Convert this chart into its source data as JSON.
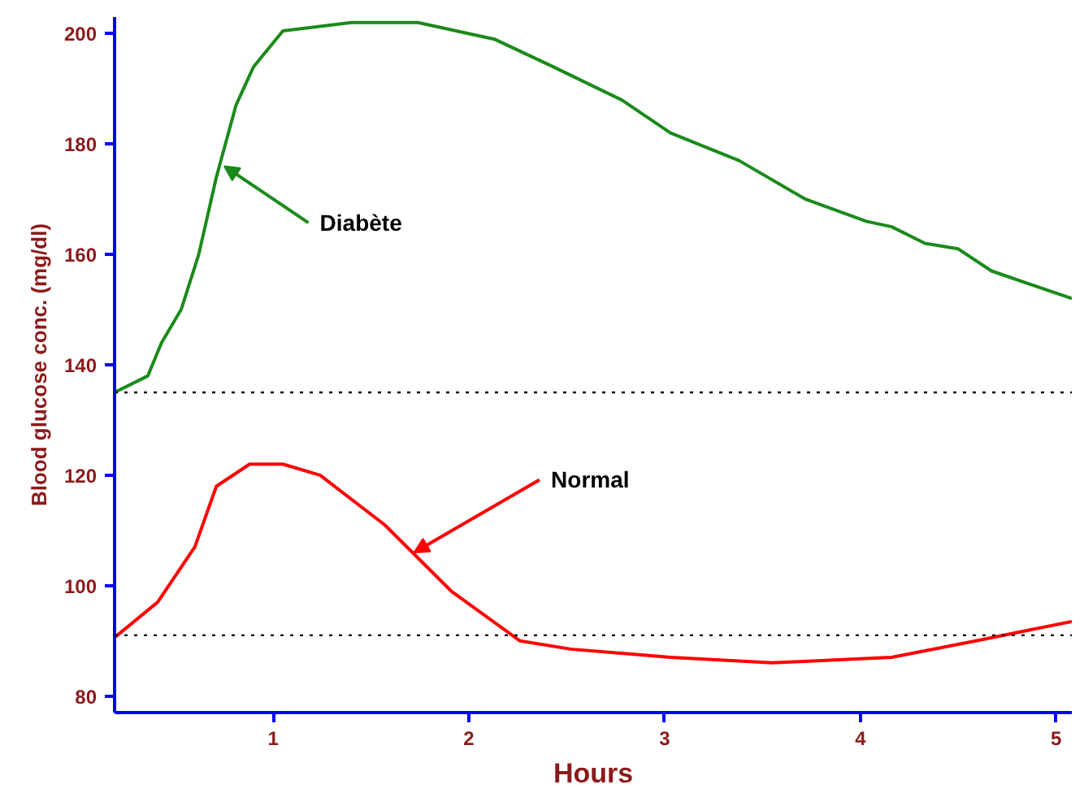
{
  "chart_data": {
    "type": "line",
    "xlabel": "Hours",
    "ylabel": "Blood glucose conc. (mg/dl)",
    "xlim": [
      0.19,
      5.08
    ],
    "ylim": [
      77,
      203
    ],
    "xticks": [
      1,
      2,
      3,
      4,
      5
    ],
    "yticks": [
      80,
      100,
      120,
      140,
      160,
      180,
      200
    ],
    "grid": false,
    "marker": "none",
    "line_style": "solid",
    "series": [
      {
        "color": "#1a8a1a",
        "x": [
          0.19,
          0.36,
          0.43,
          0.53,
          0.62,
          0.71,
          0.81,
          0.9,
          1.05,
          1.4,
          1.74,
          2.13,
          2.43,
          2.78,
          3.03,
          3.38,
          3.72,
          4.03,
          4.16,
          4.33,
          4.5,
          4.67,
          5.08
        ],
        "values": [
          135,
          138,
          144,
          150,
          160,
          174,
          187,
          194,
          200.5,
          202,
          202,
          199,
          194,
          188,
          182,
          177,
          170,
          166,
          165,
          162,
          161,
          157,
          152
        ]
      },
      {
        "color": "#ff0000",
        "x": [
          0.19,
          0.41,
          0.6,
          0.71,
          0.88,
          1.05,
          1.24,
          1.57,
          1.91,
          2.26,
          2.52,
          3.03,
          3.55,
          4.16,
          4.59,
          5.08
        ],
        "values": [
          90.6,
          97,
          107,
          118,
          122,
          122,
          120,
          111,
          99,
          90,
          88.5,
          87,
          86,
          87,
          90,
          93.5
        ]
      }
    ],
    "ref_lines": [
      {
        "axis": "y",
        "value": 135,
        "color": "#000000",
        "line_style": "dotted"
      },
      {
        "axis": "y",
        "value": 91,
        "color": "#000000",
        "line_style": "dotted"
      }
    ],
    "annotations": [
      {
        "text": "Diabète",
        "x": 0.75,
        "y": 176
      },
      {
        "text": "Normal",
        "x": 1.72,
        "y": 106
      }
    ]
  }
}
